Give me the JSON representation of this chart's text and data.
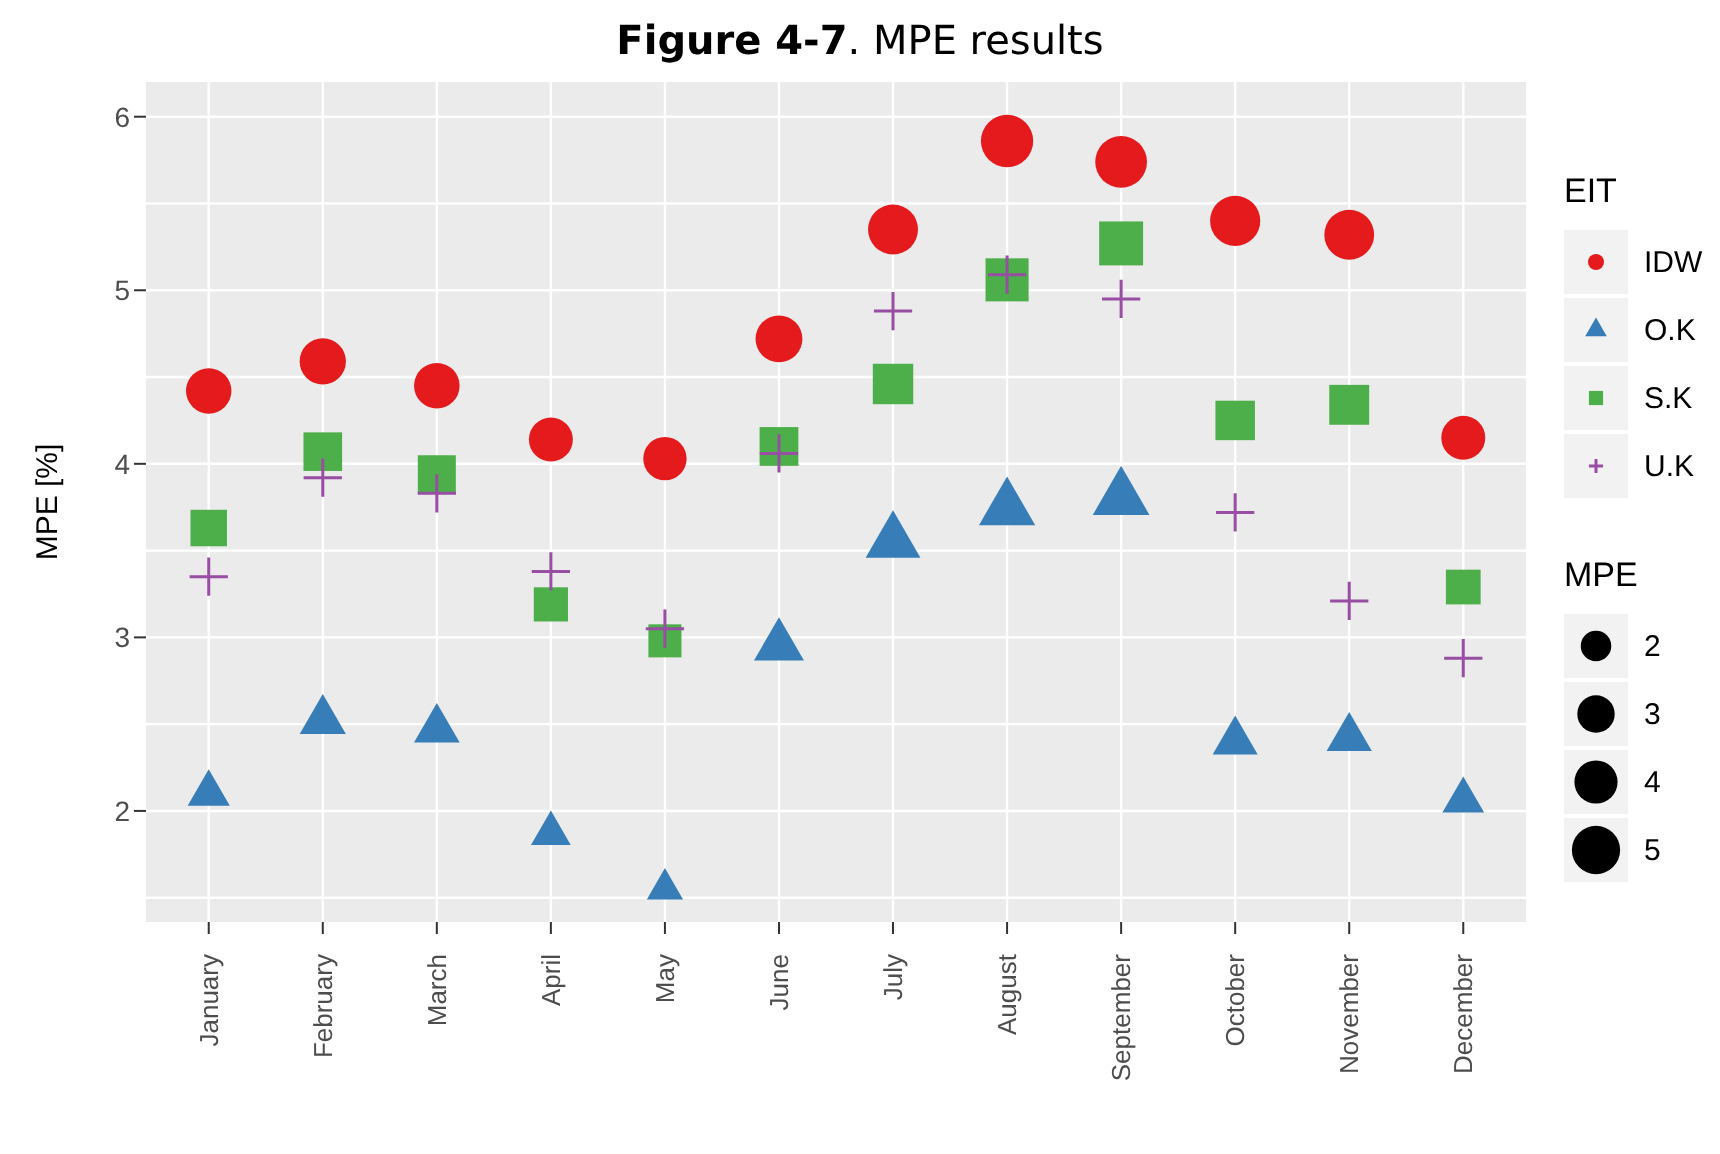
{
  "chart_data": {
    "type": "bubble",
    "title": "Figure 4-7. MPE results",
    "ylabel": "MPE [%]",
    "legend_title": "EIT",
    "annotations": [
      "MPE"
    ],
    "categories": [
      "January",
      "February",
      "March",
      "April",
      "May",
      "June",
      "July",
      "August",
      "September",
      "October",
      "November",
      "December"
    ],
    "series": [
      {
        "name": "IDW",
        "color": "#e41a1c",
        "marker": "circle",
        "values": [
          4.42,
          4.59,
          4.45,
          4.14,
          4.03,
          4.72,
          5.35,
          5.86,
          5.74,
          5.4,
          5.32,
          4.15
        ],
        "sizes": [
          4.42,
          4.59,
          4.45,
          4.14,
          4.03,
          4.72,
          5.35,
          5.86,
          5.74,
          5.4,
          5.32,
          4.15
        ]
      },
      {
        "name": "O.K",
        "color": "#377eb8",
        "marker": "triangle",
        "values": [
          2.1,
          2.52,
          2.47,
          1.87,
          1.55,
          2.95,
          3.55,
          3.74,
          3.8,
          2.4,
          2.42,
          2.06
        ],
        "sizes": [
          2.1,
          2.52,
          2.47,
          1.87,
          1.55,
          2.95,
          3.55,
          3.74,
          3.8,
          2.4,
          2.42,
          2.06
        ]
      },
      {
        "name": "S.K",
        "color": "#4daf4a",
        "marker": "square",
        "values": [
          3.63,
          4.07,
          3.94,
          3.19,
          2.98,
          4.1,
          4.46,
          5.06,
          5.27,
          4.25,
          4.34,
          3.29
        ],
        "sizes": [
          3.63,
          4.07,
          3.94,
          3.19,
          2.98,
          4.1,
          4.46,
          5.06,
          5.27,
          4.25,
          4.34,
          3.29
        ]
      },
      {
        "name": "U.K",
        "color": "#984ea3",
        "marker": "cross",
        "values": [
          3.35,
          3.92,
          3.83,
          3.38,
          3.05,
          4.06,
          4.88,
          5.09,
          4.95,
          3.72,
          3.21,
          2.88
        ]
      }
    ],
    "size_legend": [
      2,
      3,
      4,
      5
    ],
    "ylim": [
      1.36,
      6.2
    ],
    "yticks": [
      2,
      3,
      4,
      5,
      6
    ],
    "grid": true,
    "legend": "right"
  }
}
